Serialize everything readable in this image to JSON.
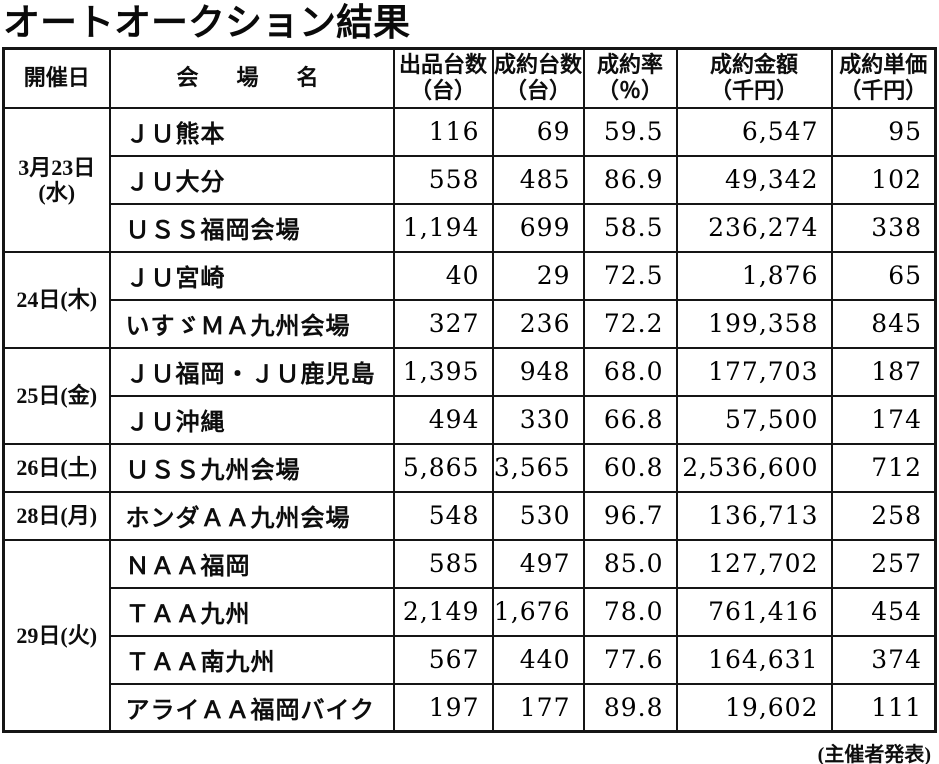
{
  "title": "オートオークション結果",
  "footer_note": "(主催者発表)",
  "table": {
    "headers": {
      "date": "開催日",
      "venue": "会　場　名",
      "listed_l1": "出品台数",
      "listed_l2": "（台）",
      "sold_l1": "成約台数",
      "sold_l2": "（台）",
      "rate_l1": "成約率",
      "rate_l2": "（％）",
      "amount_l1": "成約金額",
      "amount_l2": "（千円）",
      "unit_l1": "成約単価",
      "unit_l2": "（千円）"
    },
    "groups": [
      {
        "date1": "3月23日",
        "date2": "(水)",
        "rows": [
          {
            "venue": "ＪＵ熊本",
            "listed": "116",
            "sold": "69",
            "rate": "59.5",
            "amount": "6,547",
            "unit": "95"
          },
          {
            "venue": "ＪＵ大分",
            "listed": "558",
            "sold": "485",
            "rate": "86.9",
            "amount": "49,342",
            "unit": "102"
          },
          {
            "venue": "ＵＳＳ福岡会場",
            "listed": "1,194",
            "sold": "699",
            "rate": "58.5",
            "amount": "236,274",
            "unit": "338"
          }
        ]
      },
      {
        "date1": "24日(木)",
        "rows": [
          {
            "venue": "ＪＵ宮崎",
            "listed": "40",
            "sold": "29",
            "rate": "72.5",
            "amount": "1,876",
            "unit": "65"
          },
          {
            "venue": "いすゞＭＡ九州会場",
            "listed": "327",
            "sold": "236",
            "rate": "72.2",
            "amount": "199,358",
            "unit": "845"
          }
        ]
      },
      {
        "date1": "25日(金)",
        "rows": [
          {
            "venue": "ＪＵ福岡・ＪＵ鹿児島",
            "listed": "1,395",
            "sold": "948",
            "rate": "68.0",
            "amount": "177,703",
            "unit": "187"
          },
          {
            "venue": "ＪＵ沖縄",
            "listed": "494",
            "sold": "330",
            "rate": "66.8",
            "amount": "57,500",
            "unit": "174"
          }
        ]
      },
      {
        "date1": "26日(土)",
        "rows": [
          {
            "venue": "ＵＳＳ九州会場",
            "listed": "5,865",
            "sold": "3,565",
            "rate": "60.8",
            "amount": "2,536,600",
            "unit": "712"
          }
        ]
      },
      {
        "date1": "28日(月)",
        "rows": [
          {
            "venue": "ホンダＡＡ九州会場",
            "listed": "548",
            "sold": "530",
            "rate": "96.7",
            "amount": "136,713",
            "unit": "258"
          }
        ]
      },
      {
        "date1": "29日(火)",
        "rows": [
          {
            "venue": "ＮＡＡ福岡",
            "listed": "585",
            "sold": "497",
            "rate": "85.0",
            "amount": "127,702",
            "unit": "257"
          },
          {
            "venue": "ＴＡＡ九州",
            "listed": "2,149",
            "sold": "1,676",
            "rate": "78.0",
            "amount": "761,416",
            "unit": "454"
          },
          {
            "venue": "ＴＡＡ南九州",
            "listed": "567",
            "sold": "440",
            "rate": "77.6",
            "amount": "164,631",
            "unit": "374"
          },
          {
            "venue": "アライＡＡ福岡バイク",
            "listed": "197",
            "sold": "177",
            "rate": "89.8",
            "amount": "19,602",
            "unit": "111"
          }
        ]
      }
    ]
  }
}
